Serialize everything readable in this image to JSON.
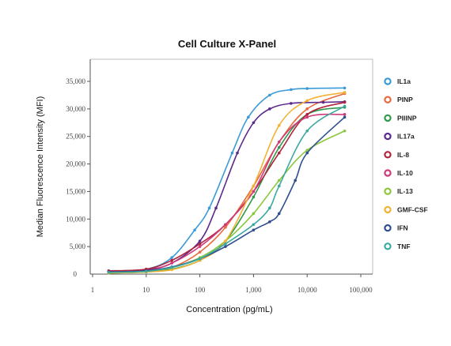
{
  "chart_data": {
    "type": "line",
    "title": "Cell Culture X-Panel",
    "xlabel": "Concentration (pg/mL)",
    "ylabel": "Median  Fluorescence  Intensity (MFI)",
    "x_scale": "log",
    "xlim": [
      1,
      100000
    ],
    "ylim": [
      0,
      35000
    ],
    "x_ticks": [
      1,
      10,
      100,
      1000,
      10000,
      100000
    ],
    "x_tick_labels": [
      "1",
      "10",
      "100",
      "1,000",
      "10,000",
      "100,000"
    ],
    "y_ticks": [
      0,
      5000,
      10000,
      15000,
      20000,
      25000,
      30000,
      35000
    ],
    "y_tick_labels": [
      "0",
      "5,000",
      "10,000",
      "15,000",
      "20,000",
      "25,000",
      "30,000",
      "35,000"
    ],
    "grid": false,
    "legend_position": "right",
    "series": [
      {
        "name": "IL1a",
        "color": "#3b9bd6",
        "x": [
          2,
          10,
          30,
          80,
          150,
          400,
          800,
          2000,
          5000,
          10000,
          50000
        ],
        "y": [
          600,
          900,
          3000,
          8000,
          12000,
          22000,
          28500,
          32500,
          33500,
          33700,
          33800
        ]
      },
      {
        "name": "PINP",
        "color": "#e8693d",
        "x": [
          2,
          10,
          30,
          100,
          300,
          1000,
          3000,
          10000,
          50000
        ],
        "y": [
          300,
          500,
          1200,
          4000,
          8500,
          16000,
          24000,
          30000,
          32800
        ]
      },
      {
        "name": "PIIINP",
        "color": "#2e9a4a",
        "x": [
          2,
          10,
          30,
          100,
          300,
          1000,
          3000,
          10000,
          50000
        ],
        "y": [
          200,
          400,
          900,
          2500,
          6000,
          14000,
          23000,
          29000,
          30300
        ]
      },
      {
        "name": "IL17a",
        "color": "#5b2a8a",
        "x": [
          2,
          10,
          30,
          100,
          200,
          500,
          1000,
          2000,
          5000,
          20000,
          50000
        ],
        "y": [
          500,
          800,
          2000,
          6000,
          12000,
          22000,
          27500,
          30000,
          31000,
          31200,
          31300
        ]
      },
      {
        "name": "IL-8",
        "color": "#b0243e",
        "x": [
          2,
          10,
          30,
          100,
          300,
          1000,
          3000,
          10000,
          50000
        ],
        "y": [
          600,
          900,
          2500,
          5500,
          9000,
          15000,
          22000,
          29000,
          31200
        ]
      },
      {
        "name": "IL-10",
        "color": "#cf3a7a",
        "x": [
          2,
          10,
          30,
          100,
          300,
          1000,
          3000,
          10000,
          50000
        ],
        "y": [
          300,
          600,
          2000,
          5000,
          9000,
          15000,
          24000,
          28500,
          29000
        ]
      },
      {
        "name": "IL-13",
        "color": "#8cc63f",
        "x": [
          2,
          10,
          30,
          100,
          300,
          1000,
          3000,
          10000,
          50000
        ],
        "y": [
          200,
          400,
          1200,
          3000,
          6000,
          11000,
          17000,
          22500,
          26000
        ]
      },
      {
        "name": "GMF-CSF",
        "color": "#f2b233",
        "x": [
          2,
          10,
          30,
          100,
          300,
          1000,
          3000,
          10000,
          50000
        ],
        "y": [
          200,
          400,
          800,
          2500,
          6000,
          16000,
          27000,
          31500,
          33000
        ]
      },
      {
        "name": "IFN",
        "color": "#2e4f8f",
        "x": [
          2,
          10,
          30,
          100,
          300,
          1000,
          2000,
          3000,
          6000,
          10000,
          50000
        ],
        "y": [
          400,
          600,
          1300,
          2800,
          5000,
          8000,
          9500,
          11000,
          17000,
          22000,
          28500
        ]
      },
      {
        "name": "TNF",
        "color": "#3aa9a0",
        "x": [
          2,
          10,
          30,
          100,
          300,
          1000,
          2000,
          3000,
          10000,
          50000
        ],
        "y": [
          300,
          500,
          1200,
          2800,
          5500,
          9000,
          12000,
          16000,
          26000,
          30500
        ]
      }
    ]
  }
}
